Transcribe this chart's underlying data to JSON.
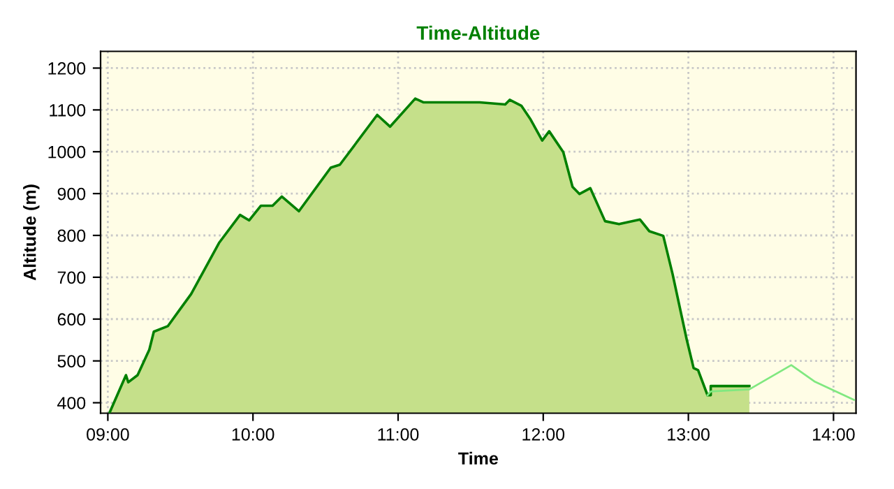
{
  "chart_data": {
    "type": "area",
    "title": "Time-Altitude",
    "xlabel": "Time",
    "ylabel": "Altitude (m)",
    "xlim": [
      8.95,
      14.155
    ],
    "ylim": [
      375,
      1240
    ],
    "xticks": [
      {
        "value": 9,
        "label": "09:00"
      },
      {
        "value": 10,
        "label": "10:00"
      },
      {
        "value": 11,
        "label": "11:00"
      },
      {
        "value": 12,
        "label": "12:00"
      },
      {
        "value": 13,
        "label": "13:00"
      },
      {
        "value": 14,
        "label": "14:00"
      }
    ],
    "yticks": [
      400,
      500,
      600,
      700,
      800,
      900,
      1000,
      1100,
      1200
    ],
    "grid": true,
    "line_style": "solid",
    "series": [
      {
        "color": "#008000",
        "x": [
          9.013,
          9.125,
          9.141,
          9.205,
          9.286,
          9.317,
          9.413,
          9.574,
          9.766,
          9.911,
          9.974,
          10.055,
          10.135,
          10.199,
          10.317,
          10.536,
          10.599,
          10.856,
          10.945,
          11.118,
          11.176,
          11.561,
          11.738,
          11.769,
          11.849,
          11.913,
          11.993,
          12.041,
          12.138,
          12.202,
          12.25,
          12.324,
          12.426,
          12.522,
          12.666,
          12.731,
          12.827,
          12.891,
          12.988,
          13.036,
          13.067,
          13.132,
          13.154,
          13.154,
          13.42
        ],
        "values": [
          377,
          466,
          449,
          466,
          527,
          570,
          583,
          660,
          782,
          849,
          836,
          871,
          871,
          893,
          858,
          962,
          969,
          1088,
          1060,
          1127,
          1118,
          1118,
          1113,
          1124,
          1110,
          1077,
          1027,
          1049,
          999,
          916,
          899,
          913,
          834,
          827,
          838,
          810,
          799,
          708,
          552,
          483,
          478,
          418,
          418,
          440,
          440
        ]
      },
      {
        "type": "line",
        "color": "#80e880",
        "x": [
          13.132,
          13.154,
          13.42,
          13.709,
          13.868,
          14.141
        ],
        "values": [
          418,
          427,
          432,
          490,
          451,
          407
        ]
      }
    ]
  }
}
